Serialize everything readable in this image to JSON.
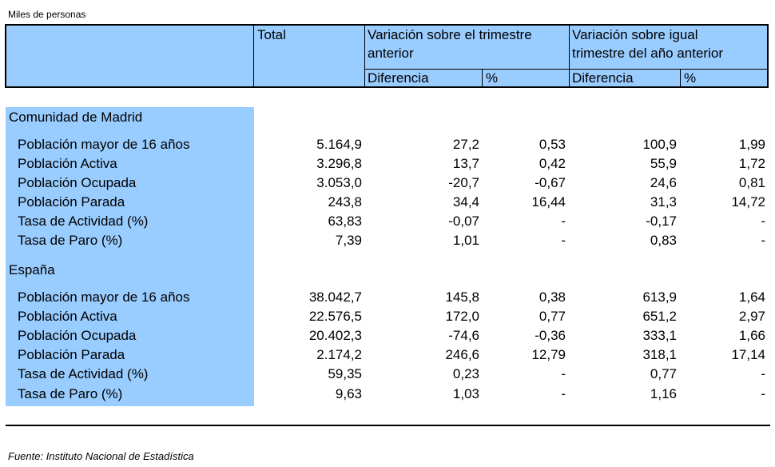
{
  "units": "Miles de personas",
  "header": {
    "total": "Total",
    "var_prev_line1": "Variación sobre el trimestre",
    "var_prev_line2": "anterior",
    "var_year_line1": "Variación sobre igual",
    "var_year_line2": "trimestre del año anterior",
    "diff": "Diferencia",
    "pct": "%"
  },
  "sections": [
    {
      "title": "Comunidad de Madrid",
      "rows": [
        {
          "label": "Población mayor de 16 años",
          "total": "5.164,9",
          "d1": "27,2",
          "p1": "0,53",
          "d2": "100,9",
          "p2": "1,99"
        },
        {
          "label": "Población Activa",
          "total": "3.296,8",
          "d1": "13,7",
          "p1": "0,42",
          "d2": "55,9",
          "p2": "1,72"
        },
        {
          "label": "Población Ocupada",
          "total": "3.053,0",
          "d1": "-20,7",
          "p1": "-0,67",
          "d2": "24,6",
          "p2": "0,81"
        },
        {
          "label": "Población Parada",
          "total": "243,8",
          "d1": "34,4",
          "p1": "16,44",
          "d2": "31,3",
          "p2": "14,72"
        },
        {
          "label": "Tasa de Actividad (%)",
          "total": "63,83",
          "d1": "-0,07",
          "p1": "-",
          "d2": "-0,17",
          "p2": "-"
        },
        {
          "label": "Tasa de Paro (%)",
          "total": "7,39",
          "d1": "1,01",
          "p1": "-",
          "d2": "0,83",
          "p2": "-"
        }
      ]
    },
    {
      "title": "España",
      "rows": [
        {
          "label": "Población mayor de 16 años",
          "total": "38.042,7",
          "d1": "145,8",
          "p1": "0,38",
          "d2": "613,9",
          "p2": "1,64"
        },
        {
          "label": "Población Activa",
          "total": "22.576,5",
          "d1": "172,0",
          "p1": "0,77",
          "d2": "651,2",
          "p2": "2,97"
        },
        {
          "label": "Población Ocupada",
          "total": "20.402,3",
          "d1": "-74,6",
          "p1": "-0,36",
          "d2": "333,1",
          "p2": "1,66"
        },
        {
          "label": "Población Parada",
          "total": "2.174,2",
          "d1": "246,6",
          "p1": "12,79",
          "d2": "318,1",
          "p2": "17,14"
        },
        {
          "label": "Tasa de Actividad (%)",
          "total": "59,35",
          "d1": "0,23",
          "p1": "-",
          "d2": "0,77",
          "p2": "-"
        },
        {
          "label": "Tasa de Paro (%)",
          "total": "9,63",
          "d1": "1,03",
          "p1": "-",
          "d2": "1,16",
          "p2": "-"
        }
      ]
    }
  ],
  "source": "Fuente: Instituto Nacional de Estadística"
}
